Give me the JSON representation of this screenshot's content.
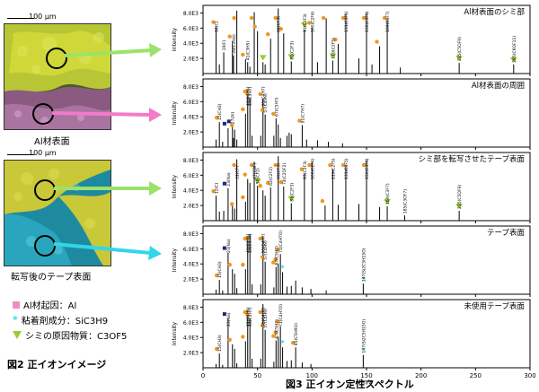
{
  "left_panel": {
    "image1": {
      "scale_label": "100 μm",
      "caption": "Al材表面"
    },
    "image2": {
      "scale_label": "100 μm",
      "caption": "転写後のテープ表面"
    },
    "legend": [
      {
        "marker": "square",
        "color": "#f08cc8",
        "label": "Al材起因：Al"
      },
      {
        "marker": "asterisk",
        "color": "#33d6e8",
        "label": "粘着剤成分：SiC3H9"
      },
      {
        "marker": "triangle",
        "color": "#9acd32",
        "label": "シミの原因物質：C3OF5"
      }
    ],
    "figure_caption": "図2 正イオンイメージ"
  },
  "figure_caption": "図3 正イオン定性スペクトル",
  "axis": {
    "xlabel": "m/z",
    "x_ticks": [
      "0",
      "50",
      "100",
      "150",
      "200",
      "250",
      "300"
    ],
    "xlim": [
      0,
      300
    ]
  },
  "chart_data": [
    {
      "type": "bar",
      "title": "Al材表面のシミ部",
      "ylabel": "Intensity",
      "y_ticks": [
        "2.0E3",
        "4.0E3",
        "6.0E3",
        "8.0E3"
      ],
      "ylim": [
        0,
        9000
      ],
      "annotations": [
        "12(C)",
        "19(F)",
        "28(C2H4)",
        "41(C3H5)",
        "69(CF3)",
        "81(C2F3)",
        "93(C3F3)",
        "100(C2F4)",
        "119(C2F5)",
        "131(C3F5)",
        "150(C3F6)",
        "169(C3F7)",
        "235(C5OF9)",
        "285(C6OF11)"
      ],
      "peaks": [
        {
          "mz": 12,
          "i": 6200,
          "m": "o"
        },
        {
          "mz": 15,
          "i": 1200
        },
        {
          "mz": 19,
          "i": 2800
        },
        {
          "mz": 27,
          "i": 4300,
          "m": "o"
        },
        {
          "mz": 28,
          "i": 2400
        },
        {
          "mz": 31,
          "i": 8300,
          "m": "o"
        },
        {
          "mz": 39,
          "i": 1900,
          "m": "o"
        },
        {
          "mz": 41,
          "i": 1500
        },
        {
          "mz": 43,
          "i": 900
        },
        {
          "mz": 47,
          "i": 8100,
          "m": "o"
        },
        {
          "mz": 50,
          "i": 5600,
          "m": "o"
        },
        {
          "mz": 55,
          "i": 1500,
          "m": "v"
        },
        {
          "mz": 57,
          "i": 1200
        },
        {
          "mz": 62,
          "i": 4600,
          "m": "o"
        },
        {
          "mz": 69,
          "i": 8600,
          "m": "o"
        },
        {
          "mz": 74,
          "i": 5300,
          "m": "o"
        },
        {
          "mz": 81,
          "i": 1600,
          "m": "v"
        },
        {
          "mz": 93,
          "i": 5800,
          "m": "v"
        },
        {
          "mz": 100,
          "i": 6100,
          "m": "o"
        },
        {
          "mz": 105,
          "i": 1500
        },
        {
          "mz": 113,
          "i": 7300,
          "m": "o"
        },
        {
          "mz": 119,
          "i": 1700,
          "m": "v"
        },
        {
          "mz": 124,
          "i": 3900,
          "m": "o"
        },
        {
          "mz": 131,
          "i": 7900,
          "m": "o"
        },
        {
          "mz": 143,
          "i": 2000
        },
        {
          "mz": 150,
          "i": 8000,
          "m": "o"
        },
        {
          "mz": 155,
          "i": 1200
        },
        {
          "mz": 162,
          "i": 3600,
          "m": "o"
        },
        {
          "mz": 169,
          "i": 7200,
          "m": "o"
        },
        {
          "mz": 181,
          "i": 800
        },
        {
          "mz": 235,
          "i": 1400,
          "m": "v"
        },
        {
          "mz": 285,
          "i": 1200,
          "m": "v"
        }
      ]
    },
    {
      "type": "bar",
      "title": "Al材表面の周囲",
      "ylabel": "Intensity",
      "y_ticks": [
        "2.0E3",
        "4.0E3",
        "6.0E3",
        "8.0E3"
      ],
      "ylim": [
        0,
        9000
      ],
      "annotations": [
        "15(CH3)",
        "27(Al)",
        "41(C3H5)",
        "43(C3H7)",
        "55(C4H7)",
        "57(C4H9)",
        "67(C5H7)",
        "91(C7H7)"
      ],
      "peaks": [
        {
          "mz": 12,
          "i": 1000
        },
        {
          "mz": 15,
          "i": 3300,
          "m": "o"
        },
        {
          "mz": 18,
          "i": 700
        },
        {
          "mz": 23,
          "i": 2500,
          "m": "s"
        },
        {
          "mz": 27,
          "i": 2800,
          "m": "s"
        },
        {
          "mz": 28,
          "i": 1200
        },
        {
          "mz": 29,
          "i": 2300,
          "m": "o"
        },
        {
          "mz": 31,
          "i": 1000
        },
        {
          "mz": 39,
          "i": 4400,
          "m": "o"
        },
        {
          "mz": 41,
          "i": 7500,
          "m": "o"
        },
        {
          "mz": 43,
          "i": 6500,
          "m": "o"
        },
        {
          "mz": 45,
          "i": 1500
        },
        {
          "mz": 53,
          "i": 1500
        },
        {
          "mz": 55,
          "i": 6400,
          "m": "o"
        },
        {
          "mz": 57,
          "i": 4300,
          "m": "o"
        },
        {
          "mz": 65,
          "i": 1500
        },
        {
          "mz": 67,
          "i": 3800,
          "m": "o"
        },
        {
          "mz": 69,
          "i": 3000
        },
        {
          "mz": 71,
          "i": 1200
        },
        {
          "mz": 77,
          "i": 1500
        },
        {
          "mz": 79,
          "i": 1900
        },
        {
          "mz": 81,
          "i": 1700
        },
        {
          "mz": 91,
          "i": 2900,
          "m": "o"
        },
        {
          "mz": 95,
          "i": 1000
        },
        {
          "mz": 105,
          "i": 900
        },
        {
          "mz": 115,
          "i": 700
        },
        {
          "mz": 128,
          "i": 500
        }
      ]
    },
    {
      "type": "bar",
      "title": "シミ部を転写させたテープ表面",
      "ylabel": "Intensity",
      "y_ticks": [
        "2.0E3",
        "4.0E3",
        "6.0E3",
        "8.0E3"
      ],
      "ylim": [
        0,
        9000
      ],
      "annotations": [
        "12(C)",
        "23(Na)",
        "31(CF)",
        "47(COF)",
        "50(CF2)",
        "62(C2F2)",
        "69(CF3)",
        "74(C2OF2)",
        "81(C2F3)",
        "93(C3F3)",
        "100(C2F4)",
        "119(C2F5)",
        "131(C3F5)",
        "150(C3F6)",
        "169(C3F7)",
        "185(C3OF7)",
        "235(C5OF9)"
      ],
      "peaks": [
        {
          "mz": 12,
          "i": 3300,
          "m": "o"
        },
        {
          "mz": 15,
          "i": 1200
        },
        {
          "mz": 19,
          "i": 1300
        },
        {
          "mz": 23,
          "i": 4300,
          "m": "s"
        },
        {
          "mz": 27,
          "i": 2000
        },
        {
          "mz": 29,
          "i": 1600,
          "m": "o"
        },
        {
          "mz": 31,
          "i": 8100,
          "m": "o"
        },
        {
          "mz": 39,
          "i": 2500,
          "m": "o"
        },
        {
          "mz": 41,
          "i": 5500,
          "m": "o"
        },
        {
          "mz": 43,
          "i": 5000
        },
        {
          "mz": 47,
          "i": 7800,
          "m": "o"
        },
        {
          "mz": 50,
          "i": 4600,
          "m": "v"
        },
        {
          "mz": 55,
          "i": 4000,
          "m": "o"
        },
        {
          "mz": 57,
          "i": 3300
        },
        {
          "mz": 62,
          "i": 4400,
          "m": "o"
        },
        {
          "mz": 69,
          "i": 8500,
          "m": "o"
        },
        {
          "mz": 74,
          "i": 4500,
          "m": "o"
        },
        {
          "mz": 81,
          "i": 2300,
          "m": "v"
        },
        {
          "mz": 93,
          "i": 6200,
          "m": "o"
        },
        {
          "mz": 100,
          "i": 7700,
          "m": "o"
        },
        {
          "mz": 112,
          "i": 2000,
          "m": "o"
        },
        {
          "mz": 119,
          "i": 6800,
          "m": "o"
        },
        {
          "mz": 124,
          "i": 2100
        },
        {
          "mz": 131,
          "i": 7300,
          "m": "o"
        },
        {
          "mz": 143,
          "i": 2200
        },
        {
          "mz": 150,
          "i": 8000,
          "m": "o"
        },
        {
          "mz": 162,
          "i": 1800
        },
        {
          "mz": 169,
          "i": 1900,
          "m": "v"
        },
        {
          "mz": 185,
          "i": 700
        },
        {
          "mz": 235,
          "i": 1300,
          "m": "v"
        }
      ]
    },
    {
      "type": "bar",
      "title": "テープ表面",
      "ylabel": "Intensity",
      "y_ticks": [
        "2.0E3",
        "4.0E3",
        "6.0E3",
        "8.0E3"
      ],
      "ylim": [
        0,
        9000
      ],
      "annotations": [
        "15(CH3)",
        "23(Na)",
        "41(C3H5)",
        "43(C3H7)",
        "55(C4H7)",
        "57(C4H9)",
        "67(C5H7)",
        "71(C4H7O)",
        "147(Si2C5H15O)"
      ],
      "peaks": [
        {
          "mz": 12,
          "i": 600
        },
        {
          "mz": 15,
          "i": 1900,
          "m": "o"
        },
        {
          "mz": 18,
          "i": 500
        },
        {
          "mz": 23,
          "i": 5500,
          "m": "s"
        },
        {
          "mz": 27,
          "i": 3300,
          "m": "o"
        },
        {
          "mz": 29,
          "i": 2700
        },
        {
          "mz": 31,
          "i": 800
        },
        {
          "mz": 39,
          "i": 3300,
          "m": "o"
        },
        {
          "mz": 41,
          "i": 7400,
          "m": "o"
        },
        {
          "mz": 43,
          "i": 7900,
          "m": "o"
        },
        {
          "mz": 45,
          "i": 1300
        },
        {
          "mz": 53,
          "i": 1300
        },
        {
          "mz": 55,
          "i": 7600,
          "m": "o"
        },
        {
          "mz": 57,
          "i": 4300,
          "m": "o"
        },
        {
          "mz": 65,
          "i": 900
        },
        {
          "mz": 67,
          "i": 3600,
          "m": "o"
        },
        {
          "mz": 69,
          "i": 4000,
          "m": "o"
        },
        {
          "mz": 71,
          "i": 5300,
          "m": "o"
        },
        {
          "mz": 73,
          "i": 2900,
          "m": "*"
        },
        {
          "mz": 77,
          "i": 1000
        },
        {
          "mz": 81,
          "i": 1100
        },
        {
          "mz": 85,
          "i": 1800
        },
        {
          "mz": 91,
          "i": 900
        },
        {
          "mz": 99,
          "i": 700
        },
        {
          "mz": 113,
          "i": 500
        },
        {
          "mz": 147,
          "i": 1400,
          "m": "*"
        }
      ]
    },
    {
      "type": "bar",
      "title": "未使用テープ表面",
      "ylabel": "Intensity",
      "y_ticks": [
        "2.0E3",
        "4.0E3",
        "6.0E3",
        "8.0E3"
      ],
      "ylim": [
        0,
        9000
      ],
      "annotations": [
        "15(CH3)",
        "23(Na)",
        "41(C3H5)",
        "43(C3H7)",
        "55(C4H7)",
        "57(C4H9)",
        "67(C5H7)",
        "71(C4H7O)",
        "85(C5H9O)",
        "147(Si2C5H15O)"
      ],
      "peaks": [
        {
          "mz": 12,
          "i": 500
        },
        {
          "mz": 15,
          "i": 1900,
          "m": "o"
        },
        {
          "mz": 18,
          "i": 400
        },
        {
          "mz": 23,
          "i": 6500,
          "m": "s"
        },
        {
          "mz": 27,
          "i": 3100,
          "m": "o"
        },
        {
          "mz": 29,
          "i": 2500
        },
        {
          "mz": 31,
          "i": 600
        },
        {
          "mz": 39,
          "i": 3500,
          "m": "o"
        },
        {
          "mz": 41,
          "i": 7500,
          "m": "o"
        },
        {
          "mz": 43,
          "i": 6500,
          "m": "o"
        },
        {
          "mz": 45,
          "i": 1200
        },
        {
          "mz": 53,
          "i": 1200
        },
        {
          "mz": 55,
          "i": 8400,
          "m": "o"
        },
        {
          "mz": 57,
          "i": 5000,
          "m": "o"
        },
        {
          "mz": 65,
          "i": 800
        },
        {
          "mz": 67,
          "i": 3600,
          "m": "o"
        },
        {
          "mz": 69,
          "i": 4100,
          "m": "o"
        },
        {
          "mz": 71,
          "i": 5500,
          "m": "o"
        },
        {
          "mz": 73,
          "i": 2700,
          "m": "*"
        },
        {
          "mz": 77,
          "i": 900
        },
        {
          "mz": 81,
          "i": 1000
        },
        {
          "mz": 85,
          "i": 2700,
          "m": "o"
        },
        {
          "mz": 91,
          "i": 700
        },
        {
          "mz": 99,
          "i": 500
        },
        {
          "mz": 147,
          "i": 1700,
          "m": "*"
        }
      ]
    }
  ]
}
